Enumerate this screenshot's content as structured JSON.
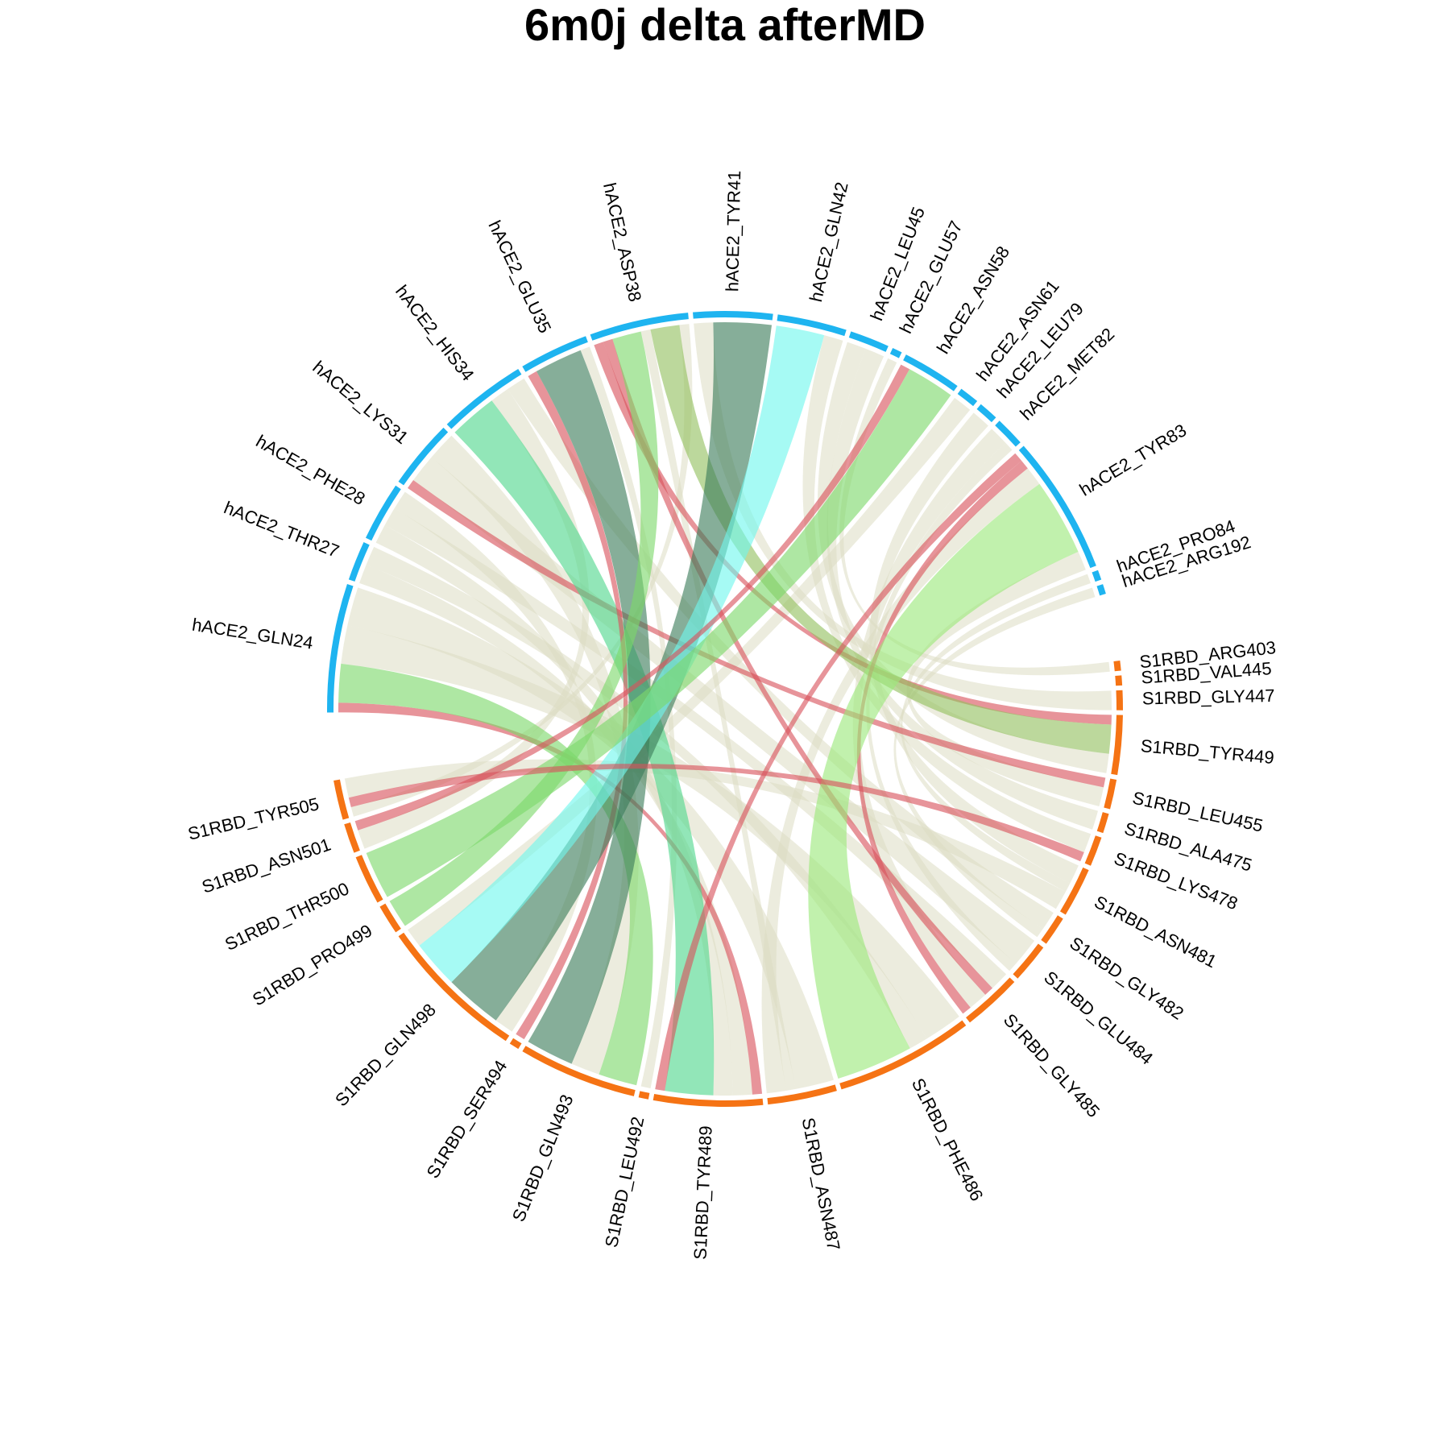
{
  "title": "6m0j delta afterMD",
  "colors": {
    "hACE2": "#1eb4f0",
    "S1RBD": "#f57314",
    "neutral": "#dcddc3",
    "red": "#d8525c",
    "green": "#7dd86a",
    "mint": "#4fd68c",
    "darkgreen": "#3b7d5a",
    "cyan": "#6ff7ee",
    "olive": "#93c060",
    "lime": "#9be87a",
    "dkgreen2": "#2f8b45"
  },
  "chart_data": {
    "type": "chord",
    "sectors": [
      {
        "name": "hACE2_GLN24",
        "group": "hACE2"
      },
      {
        "name": "hACE2_THR27",
        "group": "hACE2"
      },
      {
        "name": "hACE2_PHE28",
        "group": "hACE2"
      },
      {
        "name": "hACE2_LYS31",
        "group": "hACE2"
      },
      {
        "name": "hACE2_HIS34",
        "group": "hACE2"
      },
      {
        "name": "hACE2_GLU35",
        "group": "hACE2"
      },
      {
        "name": "hACE2_ASP38",
        "group": "hACE2"
      },
      {
        "name": "hACE2_TYR41",
        "group": "hACE2"
      },
      {
        "name": "hACE2_GLN42",
        "group": "hACE2"
      },
      {
        "name": "hACE2_LEU45",
        "group": "hACE2"
      },
      {
        "name": "hACE2_GLU57",
        "group": "hACE2"
      },
      {
        "name": "hACE2_ASN58",
        "group": "hACE2"
      },
      {
        "name": "hACE2_ASN61",
        "group": "hACE2"
      },
      {
        "name": "hACE2_LEU79",
        "group": "hACE2"
      },
      {
        "name": "hACE2_MET82",
        "group": "hACE2"
      },
      {
        "name": "hACE2_TYR83",
        "group": "hACE2"
      },
      {
        "name": "hACE2_PRO84",
        "group": "hACE2"
      },
      {
        "name": "hACE2_ARG192",
        "group": "hACE2"
      },
      {
        "name": "S1RBD_ARG403",
        "group": "S1RBD"
      },
      {
        "name": "S1RBD_VAL445",
        "group": "S1RBD"
      },
      {
        "name": "S1RBD_GLY447",
        "group": "S1RBD"
      },
      {
        "name": "S1RBD_TYR449",
        "group": "S1RBD"
      },
      {
        "name": "S1RBD_LEU455",
        "group": "S1RBD"
      },
      {
        "name": "S1RBD_ALA475",
        "group": "S1RBD"
      },
      {
        "name": "S1RBD_LYS478",
        "group": "S1RBD"
      },
      {
        "name": "S1RBD_ASN481",
        "group": "S1RBD"
      },
      {
        "name": "S1RBD_GLY482",
        "group": "S1RBD"
      },
      {
        "name": "S1RBD_GLU484",
        "group": "S1RBD"
      },
      {
        "name": "S1RBD_GLY485",
        "group": "S1RBD"
      },
      {
        "name": "S1RBD_PHE486",
        "group": "S1RBD"
      },
      {
        "name": "S1RBD_ASN487",
        "group": "S1RBD"
      },
      {
        "name": "S1RBD_TYR489",
        "group": "S1RBD"
      },
      {
        "name": "S1RBD_LEU492",
        "group": "S1RBD"
      },
      {
        "name": "S1RBD_GLN493",
        "group": "S1RBD"
      },
      {
        "name": "S1RBD_SER494",
        "group": "S1RBD"
      },
      {
        "name": "S1RBD_GLN498",
        "group": "S1RBD"
      },
      {
        "name": "S1RBD_PRO499",
        "group": "S1RBD"
      },
      {
        "name": "S1RBD_THR500",
        "group": "S1RBD"
      },
      {
        "name": "S1RBD_ASN501",
        "group": "S1RBD"
      },
      {
        "name": "S1RBD_TYR505",
        "group": "S1RBD"
      }
    ],
    "links": [
      {
        "source": "hACE2_GLN24",
        "target": "S1RBD_TYR489",
        "value": 1,
        "color": "red"
      },
      {
        "source": "hACE2_GLN24",
        "target": "S1RBD_GLN493",
        "value": 4,
        "color": "green"
      },
      {
        "source": "hACE2_GLN24",
        "target": "S1RBD_PHE486",
        "value": 4,
        "color": "neutral"
      },
      {
        "source": "hACE2_GLN24",
        "target": "S1RBD_ASN487",
        "value": 4,
        "color": "neutral"
      },
      {
        "source": "hACE2_THR27",
        "target": "S1RBD_TYR489",
        "value": 2,
        "color": "neutral"
      },
      {
        "source": "hACE2_THR27",
        "target": "S1RBD_PHE486",
        "value": 2,
        "color": "neutral"
      },
      {
        "source": "hACE2_PHE28",
        "target": "S1RBD_TYR489",
        "value": 2,
        "color": "neutral"
      },
      {
        "source": "hACE2_PHE28",
        "target": "S1RBD_GLY485",
        "value": 2,
        "color": "neutral"
      },
      {
        "source": "hACE2_PHE28",
        "target": "S1RBD_GLN498",
        "value": 2,
        "color": "neutral"
      },
      {
        "source": "hACE2_LYS31",
        "target": "S1RBD_LEU455",
        "value": 1,
        "color": "red"
      },
      {
        "source": "hACE2_LYS31",
        "target": "S1RBD_GLU484",
        "value": 3,
        "color": "neutral"
      },
      {
        "source": "hACE2_LYS31",
        "target": "S1RBD_GLN493",
        "value": 3,
        "color": "neutral"
      },
      {
        "source": "hACE2_HIS34",
        "target": "S1RBD_TYR489",
        "value": 5,
        "color": "mint"
      },
      {
        "source": "hACE2_HIS34",
        "target": "S1RBD_ASN501",
        "value": 2,
        "color": "neutral"
      },
      {
        "source": "hACE2_HIS34",
        "target": "S1RBD_GLY482",
        "value": 2,
        "color": "neutral"
      },
      {
        "source": "hACE2_GLU35",
        "target": "S1RBD_SER494",
        "value": 1,
        "color": "red"
      },
      {
        "source": "hACE2_GLU35",
        "target": "S1RBD_GLN493",
        "value": 5,
        "color": "darkgreen"
      },
      {
        "source": "hACE2_GLU35",
        "target": "S1RBD_LEU492",
        "value": 1,
        "color": "neutral"
      },
      {
        "source": "hACE2_ASP38",
        "target": "S1RBD_TYR449",
        "value": 1,
        "color": "red"
      },
      {
        "source": "hACE2_ASP38",
        "target": "S1RBD_GLY485",
        "value": 1,
        "color": "red"
      },
      {
        "source": "hACE2_ASP38",
        "target": "S1RBD_PRO499",
        "value": 3,
        "color": "green"
      },
      {
        "source": "hACE2_ASP38",
        "target": "S1RBD_ASN487",
        "value": 1,
        "color": "neutral"
      },
      {
        "source": "hACE2_ASP38",
        "target": "S1RBD_TYR449",
        "value": 3,
        "color": "olive"
      },
      {
        "source": "hACE2_ASP38",
        "target": "S1RBD_TYR505",
        "value": 1,
        "color": "neutral"
      },
      {
        "source": "hACE2_TYR41",
        "target": "S1RBD_GLY447",
        "value": 2,
        "color": "neutral"
      },
      {
        "source": "hACE2_TYR41",
        "target": "S1RBD_GLN498",
        "value": 6,
        "color": "darkgreen"
      },
      {
        "source": "hACE2_GLN42",
        "target": "S1RBD_GLN498",
        "value": 5,
        "color": "cyan"
      },
      {
        "source": "hACE2_GLN42",
        "target": "S1RBD_LYS478",
        "value": 2,
        "color": "neutral"
      },
      {
        "source": "hACE2_LEU45",
        "target": "S1RBD_TYR449",
        "value": 2,
        "color": "neutral"
      },
      {
        "source": "hACE2_LEU45",
        "target": "S1RBD_ALA475",
        "value": 2,
        "color": "neutral"
      },
      {
        "source": "hACE2_GLU57",
        "target": "S1RBD_ARG403",
        "value": 1,
        "color": "neutral"
      },
      {
        "source": "hACE2_ASN58",
        "target": "S1RBD_ASN501",
        "value": 1,
        "color": "red"
      },
      {
        "source": "hACE2_ASN58",
        "target": "S1RBD_THR500",
        "value": 5,
        "color": "green"
      },
      {
        "source": "hACE2_ASN61",
        "target": "S1RBD_GLN498",
        "value": 2,
        "color": "neutral"
      },
      {
        "source": "hACE2_LEU79",
        "target": "S1RBD_ASN481",
        "value": 2,
        "color": "neutral"
      },
      {
        "source": "hACE2_MET82",
        "target": "S1RBD_GLY485",
        "value": 2,
        "color": "neutral"
      },
      {
        "source": "hACE2_MET82",
        "target": "S1RBD_GLU484",
        "value": 1,
        "color": "neutral"
      },
      {
        "source": "hACE2_TYR83",
        "target": "S1RBD_TYR489",
        "value": 1,
        "color": "red"
      },
      {
        "source": "hACE2_TYR83",
        "target": "S1RBD_GLY485",
        "value": 1,
        "color": "red"
      },
      {
        "source": "hACE2_TYR83",
        "target": "S1RBD_ASN487",
        "value": 2,
        "color": "neutral"
      },
      {
        "source": "hACE2_TYR83",
        "target": "S1RBD_PHE486",
        "value": 8,
        "color": "lime"
      },
      {
        "source": "hACE2_TYR83",
        "target": "S1RBD_LEU455",
        "value": 2,
        "color": "neutral"
      },
      {
        "source": "hACE2_PRO84",
        "target": "S1RBD_ASN481",
        "value": 1,
        "color": "neutral"
      },
      {
        "source": "hACE2_ARG192",
        "target": "S1RBD_GLY482",
        "value": 1,
        "color": "neutral"
      },
      {
        "source": "S1RBD_TYR505",
        "target": "S1RBD_LYS478",
        "value": 1,
        "color": "red"
      },
      {
        "source": "S1RBD_TYR505",
        "target": "S1RBD_ASN481",
        "value": 2,
        "color": "neutral"
      }
    ]
  }
}
